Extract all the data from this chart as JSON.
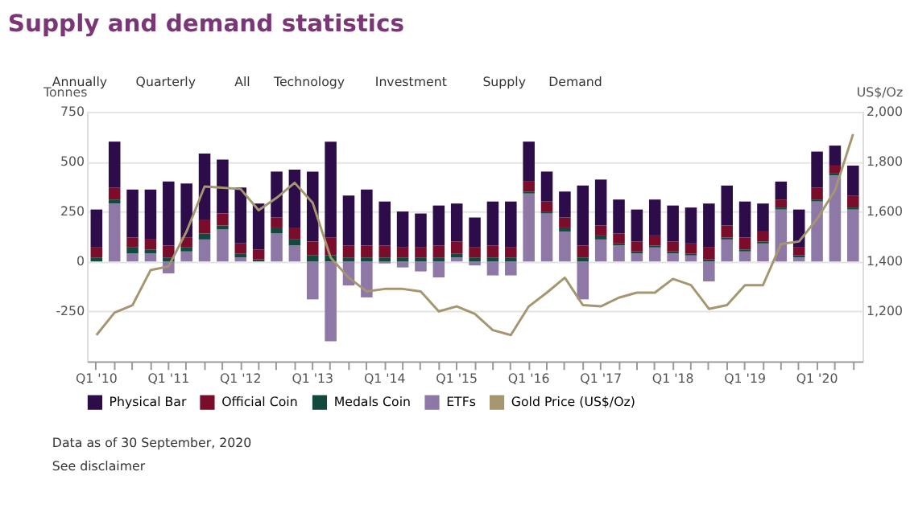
{
  "chart_data": {
    "type": "bar",
    "stacked": true,
    "title": "Supply and demand statistics",
    "ylabel": "Tonnes",
    "y2label": "US$/Oz",
    "categories": [
      "Q1 '10",
      null,
      null,
      null,
      "Q1 '11",
      null,
      null,
      null,
      "Q1 '12",
      null,
      null,
      null,
      "Q1 '13",
      null,
      null,
      null,
      "Q1 '14",
      null,
      null,
      null,
      "Q1 '15",
      null,
      null,
      null,
      "Q1 '16",
      null,
      null,
      null,
      "Q1 '17",
      null,
      null,
      null,
      "Q1 '18",
      null,
      null,
      null,
      "Q1 '19",
      null,
      null,
      null,
      "Q1 '20",
      null,
      null
    ],
    "series": [
      {
        "name": "ETFs",
        "color": "#8e78a6",
        "values": [
          0,
          290,
          40,
          40,
          -60,
          50,
          110,
          160,
          20,
          0,
          140,
          80,
          -190,
          -400,
          -120,
          -180,
          -10,
          -30,
          -50,
          -80,
          20,
          -20,
          -70,
          -70,
          340,
          240,
          150,
          -190,
          110,
          80,
          40,
          70,
          40,
          30,
          -100,
          110,
          50,
          90,
          260,
          20,
          300,
          430,
          260
        ]
      },
      {
        "name": "Medals Coin",
        "color": "#12493c",
        "values": [
          20,
          20,
          30,
          20,
          20,
          20,
          30,
          20,
          20,
          10,
          30,
          30,
          30,
          30,
          20,
          20,
          20,
          20,
          20,
          20,
          20,
          20,
          20,
          20,
          10,
          10,
          20,
          20,
          20,
          10,
          10,
          10,
          10,
          10,
          10,
          10,
          10,
          10,
          10,
          10,
          10,
          10,
          10
        ]
      },
      {
        "name": "Official Coin",
        "color": "#7a0d2b",
        "values": [
          50,
          60,
          50,
          50,
          60,
          50,
          70,
          60,
          50,
          50,
          50,
          60,
          70,
          90,
          60,
          60,
          60,
          50,
          50,
          60,
          60,
          50,
          60,
          50,
          50,
          50,
          50,
          60,
          50,
          50,
          50,
          50,
          50,
          50,
          60,
          60,
          60,
          50,
          40,
          40,
          60,
          40,
          60
        ]
      },
      {
        "name": "Physical Bar",
        "color": "#2c0d4a",
        "values": [
          190,
          230,
          240,
          250,
          320,
          270,
          330,
          270,
          280,
          230,
          230,
          290,
          350,
          480,
          250,
          280,
          220,
          180,
          170,
          200,
          190,
          150,
          220,
          230,
          200,
          150,
          130,
          300,
          230,
          170,
          160,
          180,
          180,
          180,
          220,
          200,
          180,
          140,
          90,
          190,
          180,
          100,
          150
        ]
      },
      {
        "name": "Gold Price (US$/Oz)",
        "type": "line",
        "axis": "y2",
        "color": "#a69670",
        "values": [
          1105,
          1195,
          1225,
          1365,
          1380,
          1520,
          1700,
          1695,
          1690,
          1605,
          1655,
          1715,
          1635,
          1415,
          1335,
          1280,
          1290,
          1290,
          1280,
          1200,
          1220,
          1190,
          1125,
          1105,
          1220,
          1275,
          1335,
          1225,
          1220,
          1255,
          1275,
          1275,
          1330,
          1305,
          1210,
          1225,
          1305,
          1305,
          1470,
          1480,
          1570,
          1685,
          1910
        ]
      }
    ],
    "ylim": [
      -500,
      750
    ],
    "yticks": [
      -250,
      0,
      250,
      500,
      750
    ],
    "y2lim": [
      1000,
      2000
    ],
    "y2ticks": [
      {
        "value": 1200,
        "label": "1,200"
      },
      {
        "value": 1400,
        "label": "1,400"
      },
      {
        "value": 1600,
        "label": "1,600"
      },
      {
        "value": 1800,
        "label": "1,800"
      },
      {
        "value": 2000,
        "label": "2,000"
      }
    ],
    "grid": "y",
    "legend": "bottom",
    "annotations": [
      "Annually",
      "Quarterly",
      "All",
      "Technology",
      "Investment",
      "Supply",
      "Demand",
      "Data as of 30 September, 2020",
      "See disclaimer"
    ]
  }
}
